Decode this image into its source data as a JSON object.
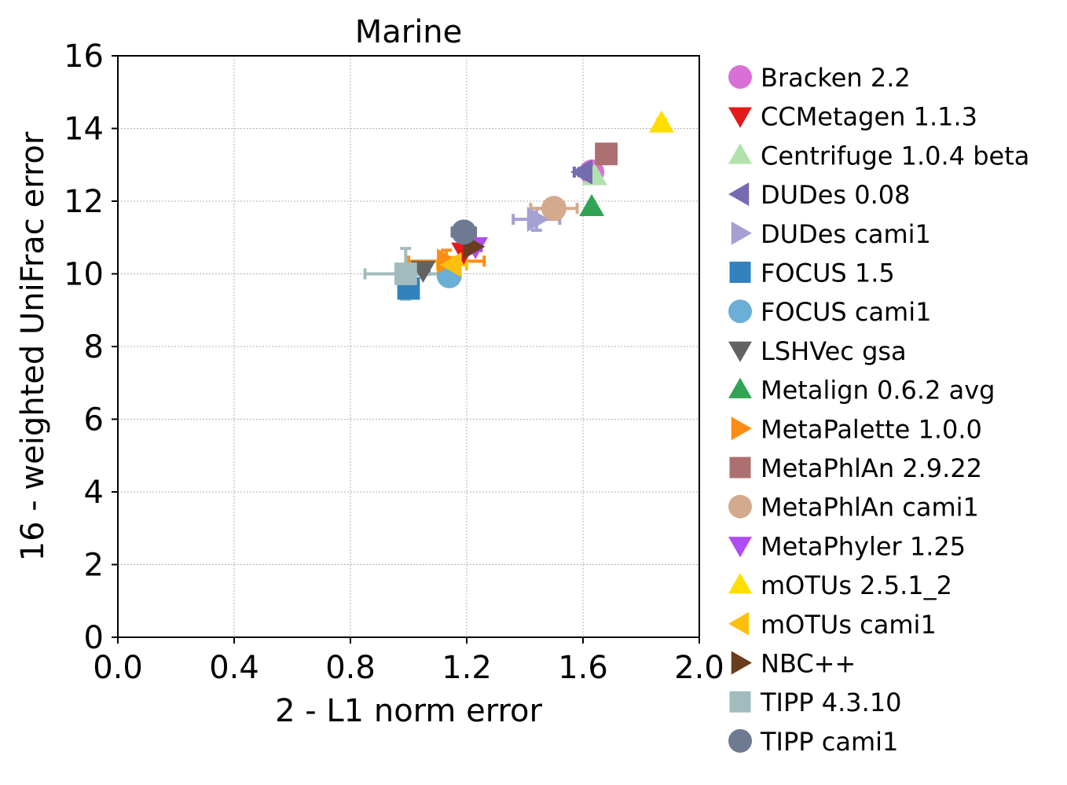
{
  "chart_data": {
    "type": "scatter",
    "title": "Marine",
    "xlabel": "2 - L1 norm error",
    "ylabel": "16 - weighted UniFrac error",
    "xlim": [
      0,
      2
    ],
    "ylim": [
      0,
      16
    ],
    "xticks": [
      "0.0",
      "0.4",
      "0.8",
      "1.2",
      "1.6",
      "2.0"
    ],
    "yticks": [
      "0",
      "2",
      "4",
      "6",
      "8",
      "10",
      "12",
      "14",
      "16"
    ],
    "grid": true,
    "legend_position": "outside-right",
    "series": [
      {
        "name": "Bracken 2.2",
        "marker": "circle",
        "color": "#da70d6",
        "x": 1.63,
        "y": 12.8,
        "xerr": 0.0,
        "yerr": 0.0
      },
      {
        "name": "CCMetagen 1.1.3",
        "marker": "triangle-down",
        "color": "#e31a1c",
        "x": 1.19,
        "y": 10.6,
        "xerr": 0.0,
        "yerr": 0.0
      },
      {
        "name": "Centrifuge 1.0.4 beta",
        "marker": "triangle-up",
        "color": "#b2e2ab",
        "x": 1.64,
        "y": 12.7,
        "xerr": 0.0,
        "yerr": 0.0
      },
      {
        "name": "DUDes 0.08",
        "marker": "triangle-left",
        "color": "#756bb1",
        "x": 1.6,
        "y": 12.8,
        "xerr": 0.03,
        "yerr": 0.1
      },
      {
        "name": "DUDes cami1",
        "marker": "triangle-right",
        "color": "#a6a1d3",
        "x": 1.44,
        "y": 11.5,
        "xerr": 0.08,
        "yerr": 0.3
      },
      {
        "name": "FOCUS 1.5",
        "marker": "square",
        "color": "#3182bd",
        "x": 1.0,
        "y": 9.6,
        "xerr": 0.0,
        "yerr": 0.1
      },
      {
        "name": "FOCUS cami1",
        "marker": "circle",
        "color": "#6baed6",
        "x": 1.14,
        "y": 9.95,
        "xerr": 0.0,
        "yerr": 0.0
      },
      {
        "name": "LSHVec gsa",
        "marker": "triangle-down",
        "color": "#636363",
        "x": 1.05,
        "y": 10.1,
        "xerr": 0.02,
        "yerr": 0.0
      },
      {
        "name": "Metalign 0.6.2 avg",
        "marker": "triangle-up",
        "color": "#31a354",
        "x": 1.63,
        "y": 11.85,
        "xerr": 0.0,
        "yerr": 0.0
      },
      {
        "name": "MetaPalette 1.0.0",
        "marker": "triangle-right",
        "color": "#fd8d12",
        "x": 1.13,
        "y": 10.35,
        "xerr": 0.13,
        "yerr": 0.3
      },
      {
        "name": "MetaPhlAn 2.9.22",
        "marker": "square",
        "color": "#ad7070",
        "x": 1.68,
        "y": 13.3,
        "xerr": 0.03,
        "yerr": 0.2
      },
      {
        "name": "MetaPhlAn cami1",
        "marker": "circle",
        "color": "#d4aa8e",
        "x": 1.5,
        "y": 11.8,
        "xerr": 0.08,
        "yerr": 0.25
      },
      {
        "name": "MetaPhyler 1.25",
        "marker": "triangle-down",
        "color": "#b04cf5",
        "x": 1.23,
        "y": 10.75,
        "xerr": 0.02,
        "yerr": 0.1
      },
      {
        "name": "mOTUs 2.5.1_2",
        "marker": "triangle-up",
        "color": "#ffde00",
        "x": 1.87,
        "y": 14.15,
        "xerr": 0.0,
        "yerr": 0.1
      },
      {
        "name": "mOTUs cami1",
        "marker": "triangle-left",
        "color": "#ffbf0e",
        "x": 1.15,
        "y": 10.25,
        "xerr": 0.05,
        "yerr": 0.2
      },
      {
        "name": "NBC++",
        "marker": "triangle-right",
        "color": "#6a3d1f",
        "x": 1.22,
        "y": 10.75,
        "xerr": 0.0,
        "yerr": 0.0
      },
      {
        "name": "TIPP 4.3.10",
        "marker": "square",
        "color": "#a2bcbe",
        "x": 0.99,
        "y": 10.0,
        "xerr": 0.14,
        "yerr": 0.7
      },
      {
        "name": "TIPP cami1",
        "marker": "circle",
        "color": "#6e7a91",
        "x": 1.19,
        "y": 11.15,
        "xerr": 0.04,
        "yerr": 0.1
      }
    ]
  }
}
